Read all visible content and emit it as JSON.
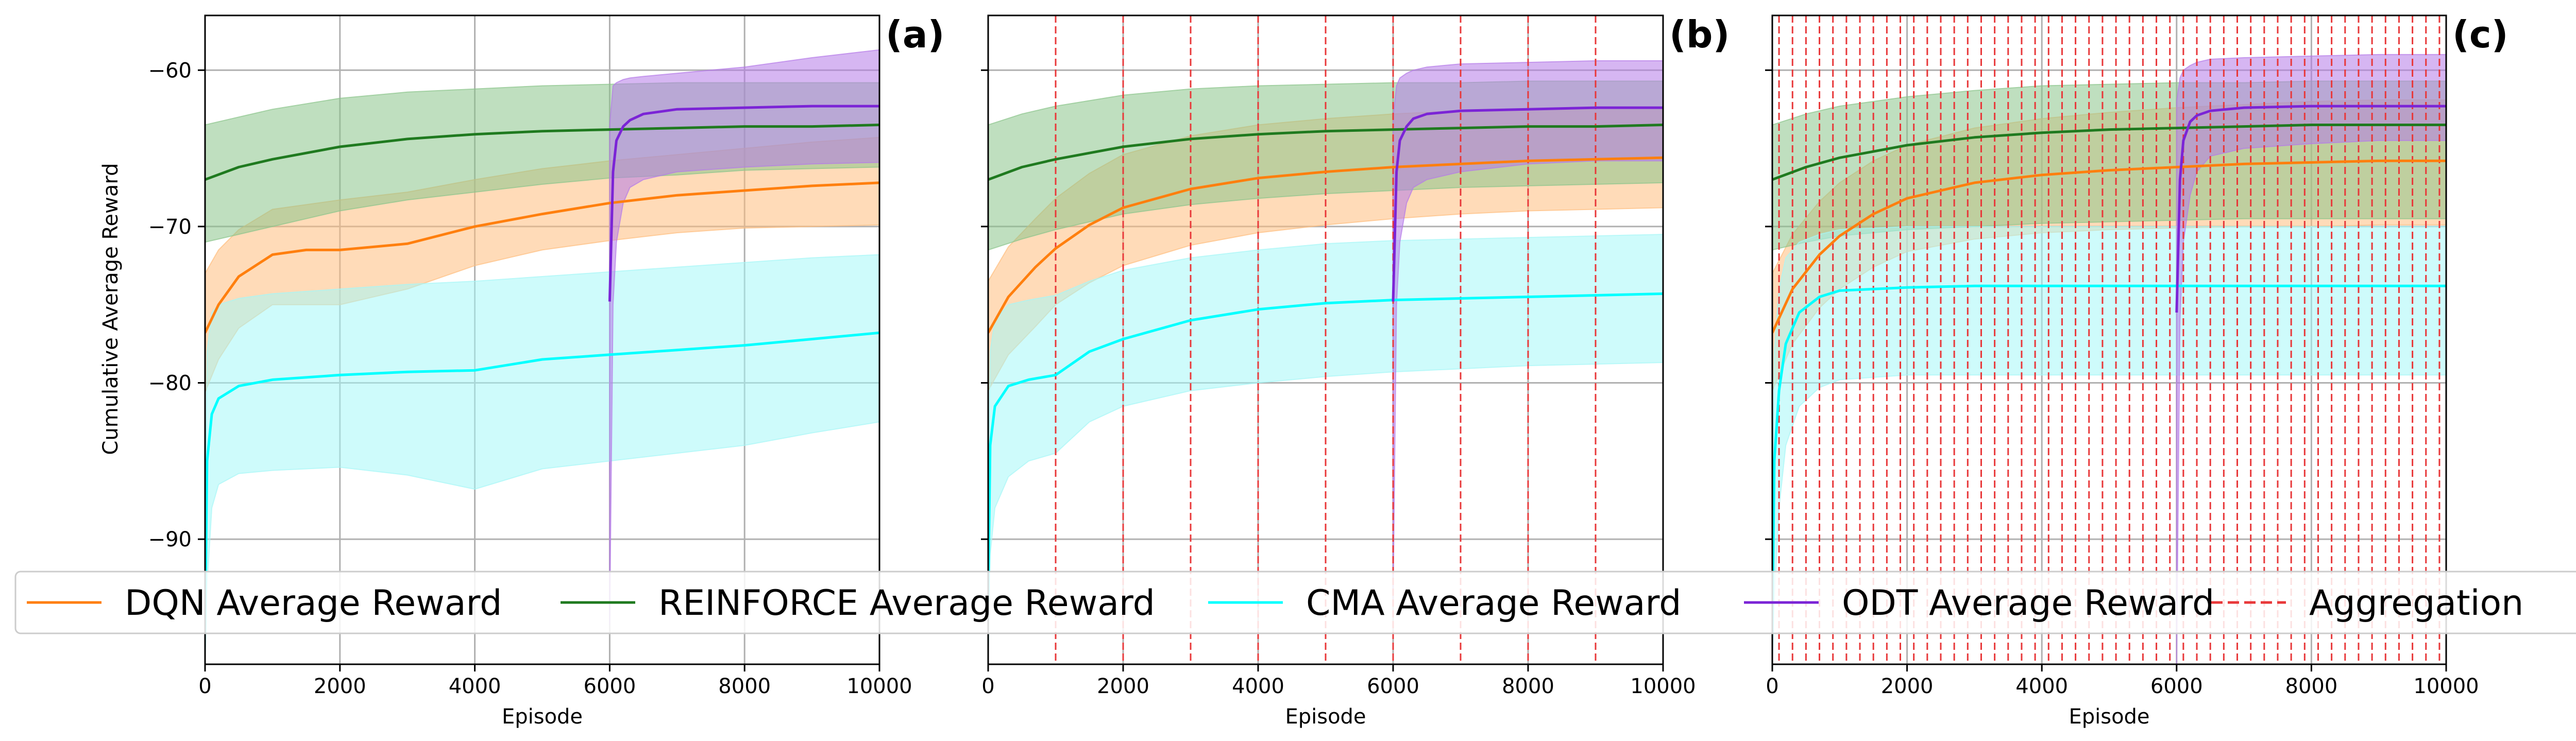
{
  "chart_data": [
    {
      "type": "line",
      "panel_label": "(a)",
      "xlabel": "Episode",
      "ylabel": "Cumulative Average Reward",
      "xlim": [
        0,
        10000
      ],
      "ylim": [
        -98,
        -56.5
      ],
      "xticks": [
        0,
        2000,
        4000,
        6000,
        8000,
        10000
      ],
      "yticks": [
        -90,
        -80,
        -70,
        -60
      ],
      "grid": true,
      "aggregation_lines": [],
      "series": [
        {
          "name": "DQN Average Reward",
          "color": "#ff7f0e",
          "band_color": "#ffbe7d",
          "x": [
            0,
            200,
            500,
            1000,
            1500,
            2000,
            3000,
            4000,
            5000,
            6000,
            7000,
            8000,
            9000,
            10000
          ],
          "y": [
            -76.8,
            -75.0,
            -73.2,
            -71.8,
            -71.5,
            -71.5,
            -71.1,
            -70.0,
            -69.2,
            -68.5,
            -68.0,
            -67.7,
            -67.4,
            -67.2
          ],
          "lower": [
            -80.6,
            -78.5,
            -76.5,
            -75.0,
            -75.0,
            -75.0,
            -74.0,
            -72.5,
            -71.5,
            -70.9,
            -70.4,
            -70.1,
            -70.0,
            -69.9
          ],
          "upper": [
            -73.0,
            -71.5,
            -70.2,
            -68.9,
            -68.6,
            -68.3,
            -67.8,
            -67.0,
            -66.3,
            -65.8,
            -65.4,
            -65.0,
            -64.6,
            -64.3
          ]
        },
        {
          "name": "REINFORCE Average Reward",
          "color": "#1f7a1f",
          "band_color": "#8bc58b",
          "x": [
            0,
            500,
            1000,
            2000,
            3000,
            4000,
            5000,
            6000,
            7000,
            8000,
            9000,
            10000
          ],
          "y": [
            -67.0,
            -66.2,
            -65.7,
            -64.9,
            -64.4,
            -64.1,
            -63.9,
            -63.8,
            -63.7,
            -63.6,
            -63.6,
            -63.5
          ],
          "lower": [
            -71.0,
            -70.5,
            -70.0,
            -69.0,
            -68.3,
            -67.8,
            -67.3,
            -66.9,
            -66.7,
            -66.4,
            -66.3,
            -66.2
          ],
          "upper": [
            -63.5,
            -63.0,
            -62.5,
            -61.8,
            -61.4,
            -61.2,
            -61.0,
            -60.9,
            -60.8,
            -60.8,
            -60.8,
            -60.8
          ]
        },
        {
          "name": "CMA Average Reward",
          "color": "#00ffff",
          "band_color": "#a6f7f7",
          "x": [
            0,
            30,
            100,
            200,
            500,
            1000,
            2000,
            3000,
            4000,
            5000,
            6000,
            7000,
            8000,
            9000,
            10000
          ],
          "y": [
            -96.0,
            -85.0,
            -82.0,
            -81.0,
            -80.2,
            -79.8,
            -79.5,
            -79.3,
            -79.2,
            -78.5,
            -78.2,
            -77.9,
            -77.6,
            -77.2,
            -76.8
          ],
          "lower": [
            -98.0,
            -93.0,
            -88.0,
            -86.5,
            -85.8,
            -85.6,
            -85.4,
            -85.9,
            -86.8,
            -85.5,
            -85.0,
            -84.5,
            -84.0,
            -83.2,
            -82.5
          ],
          "upper": [
            -92.0,
            -78.0,
            -75.5,
            -75.0,
            -74.6,
            -74.3,
            -74.0,
            -73.7,
            -73.5,
            -73.2,
            -72.9,
            -72.6,
            -72.3,
            -72.0,
            -71.8
          ]
        },
        {
          "name": "ODT Average Reward",
          "color": "#7b24d6",
          "band_color": "#b57ae8",
          "x": [
            6000,
            6050,
            6100,
            6200,
            6300,
            6500,
            7000,
            8000,
            9000,
            10000
          ],
          "y": [
            -74.8,
            -66.5,
            -64.5,
            -63.6,
            -63.2,
            -62.8,
            -62.5,
            -62.4,
            -62.3,
            -62.3
          ],
          "lower": [
            -95.5,
            -75.0,
            -71.0,
            -68.5,
            -67.5,
            -67.0,
            -66.5,
            -66.2,
            -66.0,
            -65.9
          ],
          "upper": [
            -63.5,
            -61.0,
            -60.8,
            -60.6,
            -60.5,
            -60.4,
            -60.2,
            -59.8,
            -59.2,
            -58.7
          ]
        }
      ]
    },
    {
      "type": "line",
      "panel_label": "(b)",
      "xlabel": "Episode",
      "ylabel": "",
      "xlim": [
        0,
        10000
      ],
      "ylim": [
        -98,
        -56.5
      ],
      "xticks": [
        0,
        2000,
        4000,
        6000,
        8000,
        10000
      ],
      "yticks": [
        -90,
        -80,
        -70,
        -60
      ],
      "grid": true,
      "aggregation_lines": [
        1000,
        2000,
        3000,
        4000,
        5000,
        6000,
        7000,
        8000,
        9000
      ],
      "series": [
        {
          "name": "DQN Average Reward",
          "color": "#ff7f0e",
          "band_color": "#ffbe7d",
          "x": [
            0,
            300,
            700,
            1000,
            1500,
            2000,
            3000,
            4000,
            5000,
            6000,
            7000,
            8000,
            9000,
            10000
          ],
          "y": [
            -76.8,
            -74.5,
            -72.6,
            -71.4,
            -69.9,
            -68.8,
            -67.6,
            -66.9,
            -66.5,
            -66.2,
            -66.0,
            -65.8,
            -65.7,
            -65.6
          ],
          "lower": [
            -80.5,
            -78.2,
            -76.4,
            -75.0,
            -73.6,
            -72.5,
            -71.2,
            -70.4,
            -69.9,
            -69.5,
            -69.2,
            -69.0,
            -68.9,
            -68.8
          ],
          "upper": [
            -73.5,
            -71.3,
            -69.5,
            -68.2,
            -66.6,
            -65.4,
            -64.2,
            -63.5,
            -63.1,
            -62.8,
            -62.6,
            -62.5,
            -62.4,
            -62.4
          ]
        },
        {
          "name": "REINFORCE Average Reward",
          "color": "#1f7a1f",
          "band_color": "#8bc58b",
          "x": [
            0,
            500,
            1000,
            2000,
            3000,
            4000,
            5000,
            6000,
            7000,
            8000,
            9000,
            10000
          ],
          "y": [
            -67.0,
            -66.2,
            -65.7,
            -64.9,
            -64.4,
            -64.1,
            -63.9,
            -63.8,
            -63.7,
            -63.6,
            -63.6,
            -63.5
          ],
          "lower": [
            -71.5,
            -70.8,
            -70.2,
            -69.2,
            -68.6,
            -68.2,
            -67.9,
            -67.7,
            -67.5,
            -67.4,
            -67.3,
            -67.2
          ],
          "upper": [
            -63.5,
            -62.8,
            -62.3,
            -61.6,
            -61.2,
            -61.0,
            -60.9,
            -60.8,
            -60.8,
            -60.7,
            -60.7,
            -60.7
          ]
        },
        {
          "name": "CMA Average Reward",
          "color": "#00ffff",
          "band_color": "#a6f7f7",
          "x": [
            0,
            30,
            100,
            300,
            600,
            1000,
            1500,
            2000,
            3000,
            4000,
            5000,
            6000,
            7000,
            8000,
            9000,
            10000
          ],
          "y": [
            -94.0,
            -84.0,
            -81.5,
            -80.2,
            -79.8,
            -79.5,
            -78.0,
            -77.2,
            -76.0,
            -75.3,
            -74.9,
            -74.7,
            -74.6,
            -74.5,
            -74.4,
            -74.3
          ],
          "lower": [
            -98.0,
            -91.0,
            -88.0,
            -86.0,
            -85.0,
            -84.5,
            -82.5,
            -81.5,
            -80.5,
            -80.0,
            -79.6,
            -79.3,
            -79.1,
            -78.9,
            -78.8,
            -78.7
          ],
          "upper": [
            -90.0,
            -78.0,
            -76.0,
            -75.0,
            -74.7,
            -74.4,
            -73.5,
            -72.8,
            -72.0,
            -71.5,
            -71.1,
            -70.9,
            -70.8,
            -70.7,
            -70.6,
            -70.5
          ]
        },
        {
          "name": "ODT Average Reward",
          "color": "#7b24d6",
          "band_color": "#b57ae8",
          "x": [
            6000,
            6050,
            6100,
            6200,
            6300,
            6500,
            7000,
            8000,
            9000,
            10000
          ],
          "y": [
            -74.8,
            -66.5,
            -64.5,
            -63.6,
            -63.1,
            -62.8,
            -62.6,
            -62.5,
            -62.4,
            -62.4
          ],
          "lower": [
            -94.0,
            -75.0,
            -71.0,
            -68.5,
            -67.5,
            -67.0,
            -66.5,
            -66.0,
            -65.8,
            -65.8
          ],
          "upper": [
            -63.0,
            -61.0,
            -60.5,
            -60.2,
            -60.0,
            -59.8,
            -59.6,
            -59.5,
            -59.4,
            -59.4
          ]
        }
      ]
    },
    {
      "type": "line",
      "panel_label": "(c)",
      "xlabel": "Episode",
      "ylabel": "",
      "xlim": [
        0,
        10000
      ],
      "ylim": [
        -98,
        -56.5
      ],
      "xticks": [
        0,
        2000,
        4000,
        6000,
        8000,
        10000
      ],
      "yticks": [
        -90,
        -80,
        -70,
        -60
      ],
      "grid": true,
      "aggregation_lines": [
        100,
        300,
        500,
        700,
        900,
        1100,
        1300,
        1500,
        1700,
        1900,
        2100,
        2300,
        2500,
        2700,
        2900,
        3100,
        3300,
        3500,
        3700,
        3900,
        4100,
        4300,
        4500,
        4700,
        4900,
        5100,
        5300,
        5500,
        5700,
        5900,
        6100,
        6300,
        6500,
        6700,
        6900,
        7100,
        7300,
        7500,
        7700,
        7900,
        8100,
        8300,
        8500,
        8700,
        8900,
        9100,
        9300,
        9500,
        9700,
        9900
      ],
      "series": [
        {
          "name": "DQN Average Reward",
          "color": "#ff7f0e",
          "band_color": "#ffbe7d",
          "x": [
            0,
            300,
            700,
            1000,
            1500,
            2000,
            3000,
            4000,
            5000,
            6000,
            7000,
            8000,
            9000,
            10000
          ],
          "y": [
            -76.8,
            -74.0,
            -71.8,
            -70.6,
            -69.2,
            -68.2,
            -67.2,
            -66.7,
            -66.4,
            -66.2,
            -66.0,
            -65.9,
            -65.8,
            -65.8
          ],
          "lower": [
            -80.5,
            -77.5,
            -75.2,
            -74.0,
            -72.6,
            -71.6,
            -70.8,
            -70.4,
            -70.2,
            -70.1,
            -70.0,
            -70.0,
            -69.9,
            -69.9
          ],
          "upper": [
            -73.0,
            -70.5,
            -68.4,
            -67.2,
            -65.8,
            -64.8,
            -63.7,
            -63.1,
            -62.7,
            -62.4,
            -62.2,
            -62.0,
            -61.9,
            -61.9
          ]
        },
        {
          "name": "REINFORCE Average Reward",
          "color": "#1f7a1f",
          "band_color": "#8bc58b",
          "x": [
            0,
            500,
            1000,
            2000,
            3000,
            4000,
            5000,
            6000,
            7000,
            8000,
            9000,
            10000
          ],
          "y": [
            -67.0,
            -66.2,
            -65.6,
            -64.8,
            -64.3,
            -64.0,
            -63.8,
            -63.7,
            -63.6,
            -63.5,
            -63.5,
            -63.5
          ],
          "lower": [
            -71.5,
            -71.0,
            -70.6,
            -70.2,
            -70.0,
            -69.8,
            -69.7,
            -69.6,
            -69.5,
            -69.5,
            -69.5,
            -69.5
          ],
          "upper": [
            -63.5,
            -62.8,
            -62.3,
            -61.7,
            -61.3,
            -61.0,
            -60.9,
            -60.8,
            -60.8,
            -60.7,
            -60.7,
            -60.7
          ]
        },
        {
          "name": "CMA Average Reward",
          "color": "#00ffff",
          "band_color": "#a6f7f7",
          "x": [
            0,
            30,
            100,
            200,
            400,
            700,
            1000,
            2000,
            3000,
            4000,
            5000,
            6000,
            7000,
            8000,
            9000,
            10000
          ],
          "y": [
            -96.0,
            -85.0,
            -80.5,
            -77.5,
            -75.5,
            -74.5,
            -74.1,
            -73.9,
            -73.8,
            -73.8,
            -73.8,
            -73.8,
            -73.8,
            -73.8,
            -73.8,
            -73.8
          ],
          "lower": [
            -98.0,
            -94.0,
            -88.0,
            -84.0,
            -81.5,
            -80.3,
            -79.8,
            -79.5,
            -79.5,
            -79.5,
            -79.5,
            -79.5,
            -79.5,
            -79.5,
            -79.5,
            -79.5
          ],
          "upper": [
            -92.0,
            -78.0,
            -74.0,
            -72.0,
            -71.0,
            -70.5,
            -70.2,
            -70.0,
            -70.0,
            -70.0,
            -70.0,
            -70.0,
            -70.0,
            -70.0,
            -70.0,
            -70.0
          ]
        },
        {
          "name": "ODT Average Reward",
          "color": "#7b24d6",
          "band_color": "#b57ae8",
          "x": [
            6000,
            6050,
            6100,
            6200,
            6300,
            6500,
            7000,
            8000,
            9000,
            10000
          ],
          "y": [
            -75.5,
            -67.0,
            -64.5,
            -63.3,
            -62.9,
            -62.6,
            -62.4,
            -62.3,
            -62.3,
            -62.3
          ],
          "lower": [
            -98.0,
            -76.0,
            -71.0,
            -68.0,
            -66.5,
            -65.5,
            -65.0,
            -64.7,
            -64.5,
            -64.5
          ],
          "upper": [
            -62.0,
            -60.5,
            -60.0,
            -59.7,
            -59.5,
            -59.3,
            -59.2,
            -59.1,
            -59.0,
            -59.0
          ]
        }
      ]
    }
  ],
  "legend": {
    "placement": "lower center, spanning all panels",
    "entries": [
      {
        "label": "DQN Average Reward",
        "color": "#ff7f0e",
        "style": "solid"
      },
      {
        "label": "REINFORCE Average Reward",
        "color": "#1f7a1f",
        "style": "solid"
      },
      {
        "label": "CMA Average Reward",
        "color": "#00ffff",
        "style": "solid"
      },
      {
        "label": "ODT Average Reward",
        "color": "#7b24d6",
        "style": "solid"
      },
      {
        "label": "Aggregation",
        "color": "#e8383a",
        "style": "dashed"
      }
    ]
  },
  "colors": {
    "grid": "#b0b0b0",
    "axes": "#000000",
    "aggregation": "#e8383a"
  }
}
